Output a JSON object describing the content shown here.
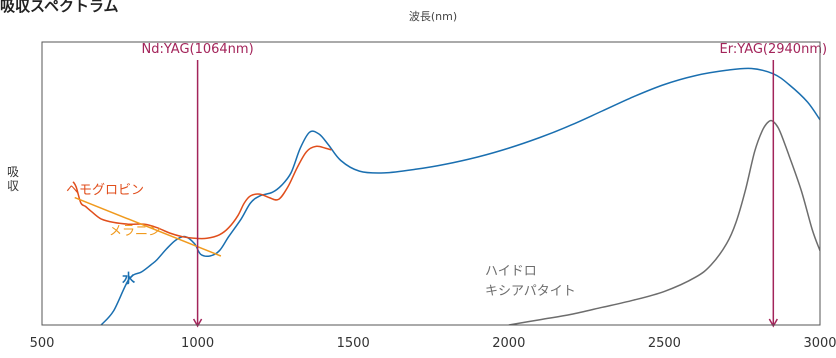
{
  "chart_data": {
    "type": "line",
    "title": "吸収スペクトラム",
    "xlabel": "波長(nm)",
    "ylabel": "吸\n収",
    "xlim": [
      500,
      3000
    ],
    "x_ticks": [
      "500",
      "1000",
      "1500",
      "2000",
      "2500",
      "3000"
    ],
    "grid": false,
    "annotations": [
      {
        "label": "Nd:YAG(1064nm)",
        "x": 1000,
        "color": "#a3245a"
      },
      {
        "label": "Er:YAG(2940nm)",
        "x": 2850,
        "color": "#a3245a"
      }
    ],
    "series": [
      {
        "name": "水",
        "color": "#1a6fb0",
        "points": [
          [
            690,
            -1.0
          ],
          [
            730,
            -0.6
          ],
          [
            780,
            0.3
          ],
          [
            820,
            0.5
          ],
          [
            850,
            0.7
          ],
          [
            870,
            0.85
          ],
          [
            900,
            1.15
          ],
          [
            930,
            1.4
          ],
          [
            960,
            1.5
          ],
          [
            990,
            1.3
          ],
          [
            1010,
            1.0
          ],
          [
            1040,
            0.95
          ],
          [
            1070,
            1.1
          ],
          [
            1100,
            1.5
          ],
          [
            1140,
            2.0
          ],
          [
            1170,
            2.45
          ],
          [
            1200,
            2.65
          ],
          [
            1240,
            2.75
          ],
          [
            1270,
            2.95
          ],
          [
            1300,
            3.3
          ],
          [
            1330,
            4.0
          ],
          [
            1360,
            4.45
          ],
          [
            1390,
            4.4
          ],
          [
            1420,
            4.1
          ],
          [
            1460,
            3.65
          ],
          [
            1520,
            3.35
          ],
          [
            1600,
            3.3
          ],
          [
            1700,
            3.4
          ],
          [
            1800,
            3.55
          ],
          [
            1900,
            3.75
          ],
          [
            2000,
            4.0
          ],
          [
            2100,
            4.3
          ],
          [
            2200,
            4.65
          ],
          [
            2300,
            5.05
          ],
          [
            2400,
            5.45
          ],
          [
            2500,
            5.8
          ],
          [
            2600,
            6.05
          ],
          [
            2700,
            6.2
          ],
          [
            2780,
            6.25
          ],
          [
            2850,
            6.1
          ],
          [
            2900,
            5.8
          ],
          [
            2960,
            5.3
          ],
          [
            3000,
            4.8
          ]
        ]
      },
      {
        "name": "ヘモグロビン",
        "color": "#e04e1c",
        "points": [
          [
            600,
            3.05
          ],
          [
            610,
            2.9
          ],
          [
            625,
            2.45
          ],
          [
            640,
            2.35
          ],
          [
            660,
            2.2
          ],
          [
            690,
            2.0
          ],
          [
            730,
            1.9
          ],
          [
            780,
            1.85
          ],
          [
            830,
            1.85
          ],
          [
            870,
            1.75
          ],
          [
            910,
            1.6
          ],
          [
            950,
            1.5
          ],
          [
            990,
            1.45
          ],
          [
            1030,
            1.45
          ],
          [
            1070,
            1.55
          ],
          [
            1100,
            1.75
          ],
          [
            1130,
            2.1
          ],
          [
            1150,
            2.45
          ],
          [
            1170,
            2.65
          ],
          [
            1200,
            2.7
          ],
          [
            1230,
            2.6
          ],
          [
            1260,
            2.55
          ],
          [
            1290,
            2.9
          ],
          [
            1320,
            3.45
          ],
          [
            1350,
            3.9
          ],
          [
            1380,
            4.05
          ],
          [
            1410,
            4.0
          ],
          [
            1430,
            3.95
          ]
        ]
      },
      {
        "name": "メラニン",
        "color": "#f09a1e",
        "points": [
          [
            605,
            2.6
          ],
          [
            1075,
            0.95
          ]
        ]
      },
      {
        "name": "ハイドロ\nキシアパタイト",
        "color": "#6d6d6d",
        "points": [
          [
            2000,
            -1.0
          ],
          [
            2100,
            -0.85
          ],
          [
            2200,
            -0.7
          ],
          [
            2300,
            -0.5
          ],
          [
            2400,
            -0.3
          ],
          [
            2500,
            -0.05
          ],
          [
            2600,
            0.35
          ],
          [
            2650,
            0.7
          ],
          [
            2700,
            1.3
          ],
          [
            2730,
            1.9
          ],
          [
            2760,
            2.8
          ],
          [
            2790,
            3.9
          ],
          [
            2815,
            4.5
          ],
          [
            2835,
            4.75
          ],
          [
            2850,
            4.75
          ],
          [
            2870,
            4.5
          ],
          [
            2900,
            3.8
          ],
          [
            2940,
            2.8
          ],
          [
            2975,
            1.7
          ],
          [
            3000,
            1.1
          ]
        ]
      }
    ]
  }
}
